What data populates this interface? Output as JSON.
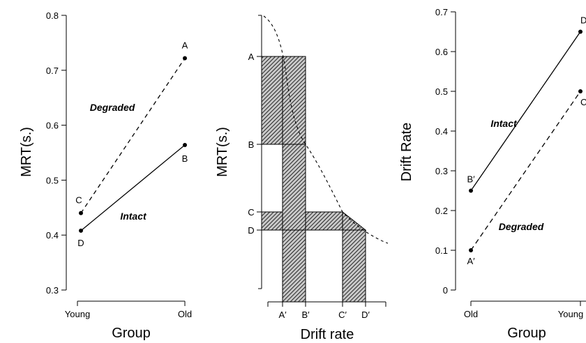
{
  "chart_data": [
    {
      "type": "line",
      "xlabel": "Group",
      "ylabel": "MRT(s.)",
      "categories": [
        "Young",
        "Old"
      ],
      "yticks": [
        "0.3",
        "0.4",
        "0.5",
        "0.6",
        "0.7",
        "0.8"
      ],
      "ylim": [
        0.3,
        0.8
      ],
      "series": [
        {
          "name": "Degraded",
          "style": "dashed",
          "values": [
            0.44,
            0.722
          ],
          "point_labels": [
            "C",
            "A"
          ]
        },
        {
          "name": "Intact",
          "style": "solid",
          "values": [
            0.408,
            0.564
          ],
          "point_labels": [
            "D",
            "B"
          ]
        }
      ]
    },
    {
      "type": "area",
      "xlabel": "Drift rate",
      "ylabel": "MRT(s.)",
      "y_levels": [
        {
          "label": "A",
          "value": 0.722
        },
        {
          "label": "B",
          "value": 0.564
        },
        {
          "label": "C",
          "value": 0.44
        },
        {
          "label": "D",
          "value": 0.408
        }
      ],
      "x_levels": [
        {
          "label": "A′",
          "value": 0.1
        },
        {
          "label": "B′",
          "value": 0.25
        },
        {
          "label": "C′",
          "value": 0.5
        },
        {
          "label": "D′",
          "value": 0.65
        }
      ],
      "curve": "dashed decreasing MRT-vs-drift-rate function"
    },
    {
      "type": "line",
      "xlabel": "Group",
      "ylabel": "Drift Rate",
      "categories": [
        "Old",
        "Young"
      ],
      "yticks": [
        "0",
        "0.1",
        "0.2",
        "0.3",
        "0.4",
        "0.5",
        "0.6",
        "0.7"
      ],
      "ylim": [
        0,
        0.7
      ],
      "series": [
        {
          "name": "Intact",
          "style": "solid",
          "values": [
            0.25,
            0.65
          ],
          "point_labels": [
            "B′",
            "D′"
          ]
        },
        {
          "name": "Degraded",
          "style": "dashed",
          "values": [
            0.1,
            0.5
          ],
          "point_labels": [
            "A′",
            "C′"
          ]
        }
      ]
    }
  ]
}
